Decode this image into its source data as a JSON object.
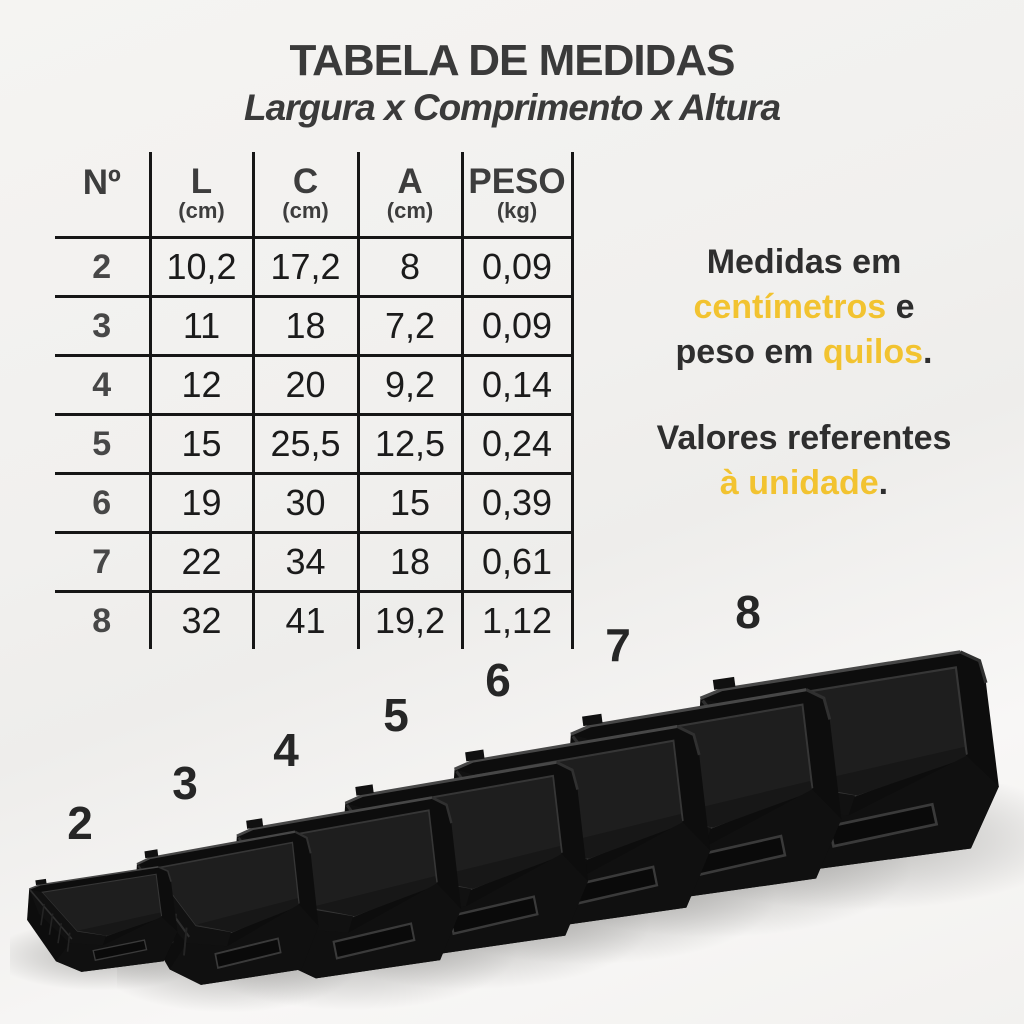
{
  "title": {
    "main": "TABELA DE MEDIDAS",
    "subtitle": "Largura x Comprimento x Altura"
  },
  "table": {
    "headers": [
      {
        "label": "Nº",
        "unit": ""
      },
      {
        "label": "L",
        "unit": "(cm)"
      },
      {
        "label": "C",
        "unit": "(cm)"
      },
      {
        "label": "A",
        "unit": "(cm)"
      },
      {
        "label": "PESO",
        "unit": "(kg)"
      }
    ],
    "rows": [
      [
        "2",
        "10,2",
        "17,2",
        "8",
        "0,09"
      ],
      [
        "3",
        "11",
        "18",
        "7,2",
        "0,09"
      ],
      [
        "4",
        "12",
        "20",
        "9,2",
        "0,14"
      ],
      [
        "5",
        "15",
        "25,5",
        "12,5",
        "0,24"
      ],
      [
        "6",
        "19",
        "30",
        "15",
        "0,39"
      ],
      [
        "7",
        "22",
        "34",
        "18",
        "0,61"
      ],
      [
        "8",
        "32",
        "41",
        "19,2",
        "1,12"
      ]
    ]
  },
  "notes": {
    "l1": "Medidas em",
    "l2a": "centímetros",
    "l2b": " e",
    "l3a": "peso em ",
    "l3b": "quilos",
    "l3c": ".",
    "l4": "Valores referentes",
    "l5a": "à unidade",
    "l5b": "."
  },
  "bins": [
    {
      "label": "2"
    },
    {
      "label": "3"
    },
    {
      "label": "4"
    },
    {
      "label": "5"
    },
    {
      "label": "6"
    },
    {
      "label": "7"
    },
    {
      "label": "8"
    }
  ],
  "colors": {
    "accent": "#F2C330",
    "heading": "#3A3A3A",
    "text": "#1B1B1B"
  }
}
